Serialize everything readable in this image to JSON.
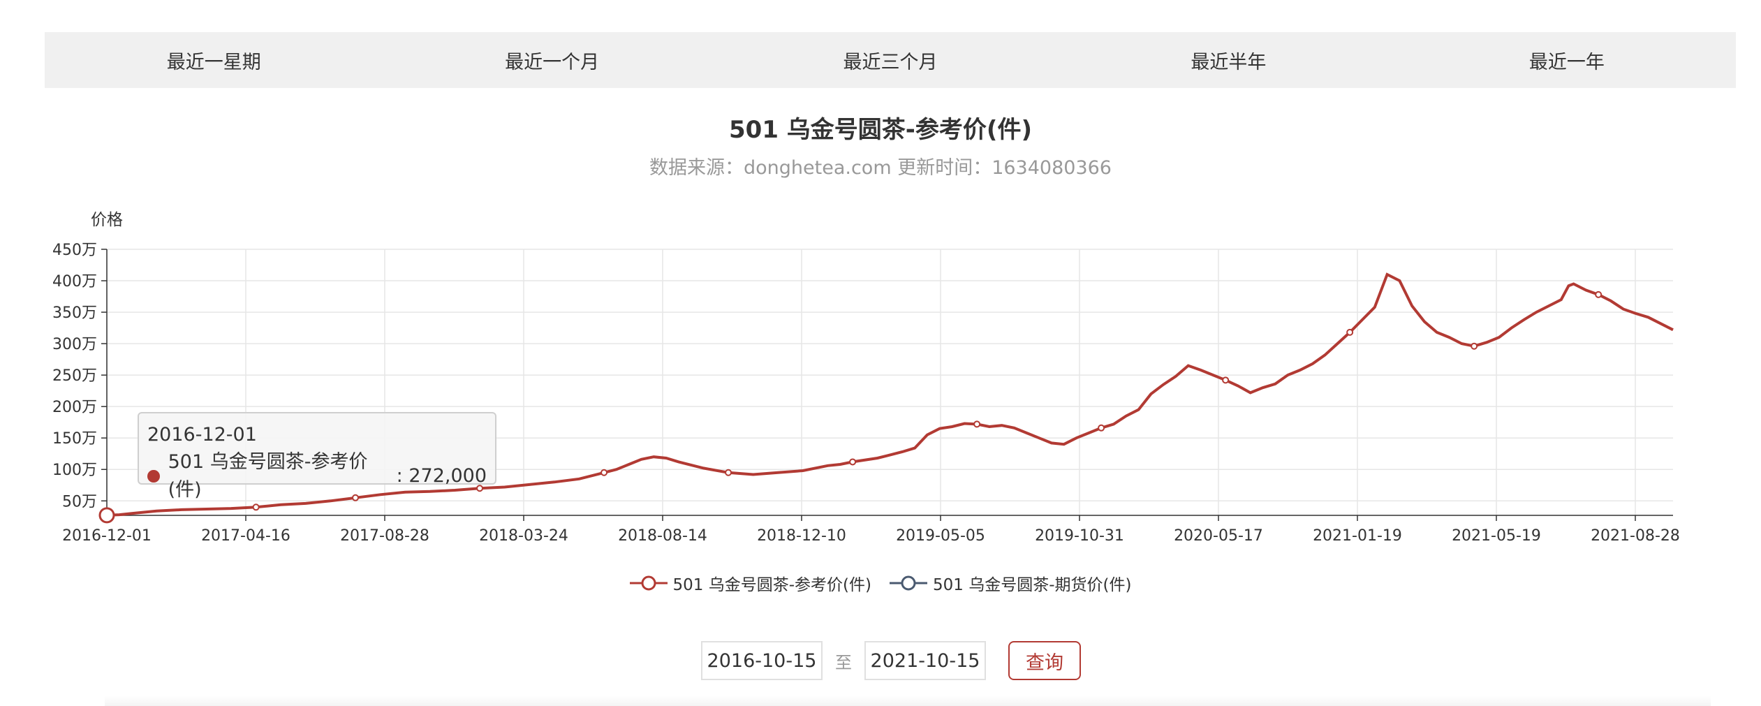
{
  "tabs": [
    {
      "label": "最近一星期"
    },
    {
      "label": "最近一个月"
    },
    {
      "label": "最近三个月"
    },
    {
      "label": "最近半年"
    },
    {
      "label": "最近一年"
    }
  ],
  "tooltip": {
    "date": "2016-12-01",
    "series": "501 乌金号圆茶-参考价(件)",
    "value": "272,000"
  },
  "legend": [
    {
      "name": "501 乌金号圆茶-参考价(件)",
      "color": "#b23a33"
    },
    {
      "name": "501 乌金号圆茶-期货价(件)",
      "color": "#4a5a70"
    }
  ],
  "query": {
    "start": "2016-10-15",
    "separator": "至",
    "end": "2021-10-15",
    "button": "查询"
  },
  "chart_data": {
    "type": "line",
    "title": "501 乌金号圆茶-参考价(件)",
    "subtitle": "数据来源：donghetea.com 更新时间：1634080366",
    "ylabel": "价格",
    "xlabel": "",
    "ylim": [
      27,
      450
    ],
    "yticks": [
      50,
      100,
      150,
      200,
      250,
      300,
      350,
      400,
      450
    ],
    "ytick_suffix": "万",
    "xticks": [
      "2016-12-01",
      "2017-04-16",
      "2017-08-28",
      "2018-03-24",
      "2018-08-14",
      "2018-12-10",
      "2019-05-05",
      "2019-10-31",
      "2020-05-17",
      "2021-01-19",
      "2021-05-19",
      "2021-08-28"
    ],
    "grid": true,
    "legend_position": "bottom",
    "series": [
      {
        "name": "501 乌金号圆茶-参考价(件)",
        "color": "#b23a33",
        "points": [
          [
            0,
            27.2
          ],
          [
            0.5,
            28
          ],
          [
            1,
            30
          ],
          [
            2,
            34
          ],
          [
            3,
            36
          ],
          [
            4,
            37
          ],
          [
            5,
            38
          ],
          [
            6,
            40
          ],
          [
            7,
            44
          ],
          [
            8,
            46
          ],
          [
            9,
            50
          ],
          [
            10,
            55
          ],
          [
            11,
            60
          ],
          [
            12,
            64
          ],
          [
            13,
            65
          ],
          [
            14,
            67
          ],
          [
            15,
            70
          ],
          [
            16,
            72
          ],
          [
            17,
            76
          ],
          [
            18,
            80
          ],
          [
            19,
            85
          ],
          [
            20,
            95
          ],
          [
            20.5,
            100
          ],
          [
            21,
            108
          ],
          [
            21.5,
            116
          ],
          [
            22,
            120
          ],
          [
            22.5,
            118
          ],
          [
            23,
            112
          ],
          [
            24,
            102
          ],
          [
            25,
            95
          ],
          [
            26,
            92
          ],
          [
            27,
            95
          ],
          [
            28,
            98
          ],
          [
            29,
            106
          ],
          [
            29.5,
            108
          ],
          [
            30,
            112
          ],
          [
            31,
            118
          ],
          [
            32,
            128
          ],
          [
            32.5,
            134
          ],
          [
            33,
            155
          ],
          [
            33.5,
            165
          ],
          [
            34,
            168
          ],
          [
            34.5,
            173
          ],
          [
            35,
            172
          ],
          [
            35.5,
            168
          ],
          [
            36,
            170
          ],
          [
            36.5,
            166
          ],
          [
            37,
            158
          ],
          [
            37.5,
            150
          ],
          [
            38,
            142
          ],
          [
            38.5,
            140
          ],
          [
            39,
            150
          ],
          [
            39.5,
            158
          ],
          [
            40,
            166
          ],
          [
            40.5,
            172
          ],
          [
            41,
            185
          ],
          [
            41.5,
            195
          ],
          [
            42,
            220
          ],
          [
            42.5,
            235
          ],
          [
            43,
            248
          ],
          [
            43.5,
            265
          ],
          [
            44,
            258
          ],
          [
            44.5,
            250
          ],
          [
            45,
            242
          ],
          [
            45.5,
            233
          ],
          [
            46,
            222
          ],
          [
            46.5,
            230
          ],
          [
            47,
            236
          ],
          [
            47.5,
            250
          ],
          [
            48,
            258
          ],
          [
            48.5,
            268
          ],
          [
            49,
            282
          ],
          [
            49.5,
            300
          ],
          [
            50,
            318
          ],
          [
            50.5,
            338
          ],
          [
            51,
            358
          ],
          [
            51.5,
            410
          ],
          [
            52,
            400
          ],
          [
            52.5,
            360
          ],
          [
            53,
            335
          ],
          [
            53.5,
            318
          ],
          [
            54,
            310
          ],
          [
            54.5,
            300
          ],
          [
            55,
            296
          ],
          [
            55.5,
            302
          ],
          [
            56,
            310
          ],
          [
            56.5,
            325
          ],
          [
            57,
            338
          ],
          [
            57.5,
            350
          ],
          [
            58,
            360
          ],
          [
            58.5,
            370
          ],
          [
            58.8,
            392
          ],
          [
            59,
            395
          ],
          [
            59.5,
            385
          ],
          [
            60,
            378
          ],
          [
            60.5,
            368
          ],
          [
            61,
            355
          ],
          [
            61.5,
            348
          ],
          [
            62,
            342
          ],
          [
            62.5,
            332
          ],
          [
            63,
            322
          ]
        ],
        "markers": [
          0,
          6,
          10,
          15,
          20,
          25,
          30,
          35,
          40,
          45,
          50,
          55,
          60
        ],
        "x_max": 63
      },
      {
        "name": "501 乌金号圆茶-期货价(件)",
        "color": "#4a5a70",
        "points": []
      }
    ]
  }
}
